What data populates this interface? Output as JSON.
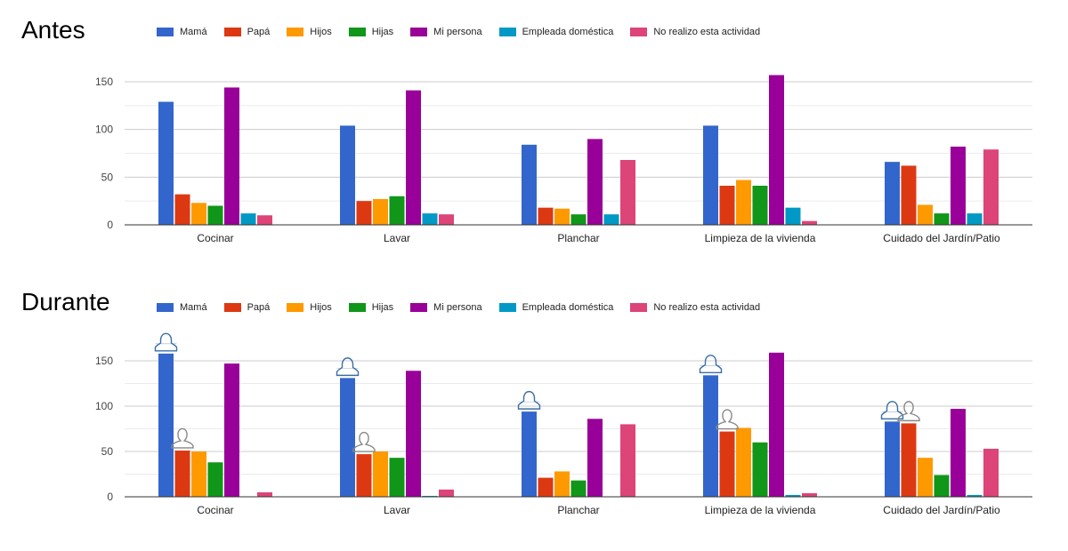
{
  "chart_data": [
    {
      "type": "bar",
      "title": "Antes",
      "xlabel": "",
      "ylabel": "",
      "ylim": [
        0,
        160
      ],
      "yticks": [
        0,
        50,
        100,
        150
      ],
      "grid": true,
      "legend_position": "top",
      "categories": [
        "Cocinar",
        "Lavar",
        "Planchar",
        "Limpieza de la vivienda",
        "Cuidado del Jardín/Patio"
      ],
      "series": [
        {
          "name": "Mamá",
          "color": "#3366cc",
          "values": [
            129,
            104,
            84,
            104,
            66
          ]
        },
        {
          "name": "Papá",
          "color": "#dc3912",
          "values": [
            32,
            25,
            18,
            41,
            62
          ]
        },
        {
          "name": "Hijos",
          "color": "#ff9900",
          "values": [
            23,
            27,
            17,
            47,
            21
          ]
        },
        {
          "name": "Hijas",
          "color": "#109618",
          "values": [
            20,
            30,
            11,
            41,
            12
          ]
        },
        {
          "name": "Mi persona",
          "color": "#990099",
          "values": [
            144,
            141,
            90,
            157,
            82
          ]
        },
        {
          "name": "Empleada doméstica",
          "color": "#0099c6",
          "values": [
            12,
            12,
            11,
            18,
            12
          ]
        },
        {
          "name": "No realizo esta actividad",
          "color": "#dd4477",
          "values": [
            10,
            11,
            68,
            4,
            79
          ]
        }
      ]
    },
    {
      "type": "bar",
      "title": "Durante",
      "xlabel": "",
      "ylabel": "",
      "ylim": [
        0,
        160
      ],
      "yticks": [
        0,
        50,
        100,
        150
      ],
      "grid": true,
      "legend_position": "top",
      "categories": [
        "Cocinar",
        "Lavar",
        "Planchar",
        "Limpieza de la vivienda",
        "Cuidado del Jardín/Patio"
      ],
      "series": [
        {
          "name": "Mamá",
          "color": "#3366cc",
          "values": [
            158,
            131,
            94,
            134,
            83
          ]
        },
        {
          "name": "Papá",
          "color": "#dc3912",
          "values": [
            51,
            47,
            21,
            72,
            81
          ]
        },
        {
          "name": "Hijos",
          "color": "#ff9900",
          "values": [
            50,
            50,
            28,
            76,
            43
          ]
        },
        {
          "name": "Hijas",
          "color": "#109618",
          "values": [
            38,
            43,
            18,
            60,
            24
          ]
        },
        {
          "name": "Mi persona",
          "color": "#990099",
          "values": [
            147,
            139,
            86,
            159,
            97
          ]
        },
        {
          "name": "Empleada doméstica",
          "color": "#0099c6",
          "values": [
            0,
            1,
            0,
            2,
            2
          ]
        },
        {
          "name": "No realizo esta actividad",
          "color": "#dd4477",
          "values": [
            5,
            8,
            80,
            4,
            53
          ]
        }
      ],
      "annotations": [
        {
          "type": "female-person-icon",
          "category": "Cocinar",
          "series": "Mamá"
        },
        {
          "type": "male-person-icon",
          "category": "Cocinar",
          "series": "Papá"
        },
        {
          "type": "female-person-icon",
          "category": "Lavar",
          "series": "Mamá"
        },
        {
          "type": "male-person-icon",
          "category": "Lavar",
          "series": "Papá"
        },
        {
          "type": "female-person-icon",
          "category": "Planchar",
          "series": "Mamá"
        },
        {
          "type": "female-person-icon",
          "category": "Limpieza de la vivienda",
          "series": "Mamá"
        },
        {
          "type": "male-person-icon",
          "category": "Limpieza de la vivienda",
          "series": "Papá"
        },
        {
          "type": "female-person-icon",
          "category": "Cuidado del Jardín/Patio",
          "series": "Mamá"
        },
        {
          "type": "male-person-icon",
          "category": "Cuidado del Jardín/Patio",
          "series": "Papá"
        }
      ]
    }
  ],
  "panels": [
    {
      "title": "Antes"
    },
    {
      "title": "Durante"
    }
  ]
}
